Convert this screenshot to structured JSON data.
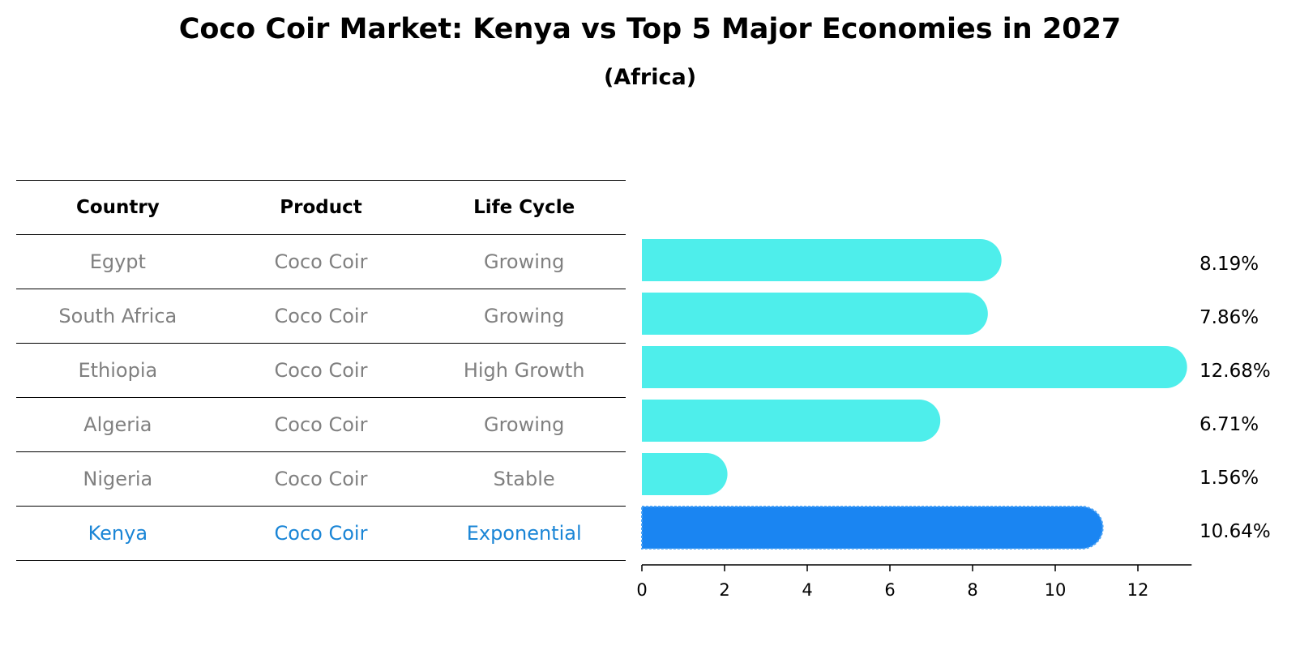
{
  "title": "Coco Coir Market: Kenya vs Top 5 Major Economies in 2027",
  "subtitle": "(Africa)",
  "table": {
    "headers": [
      "Country",
      "Product",
      "Life Cycle"
    ],
    "rows": [
      {
        "country": "Egypt",
        "product": "Coco Coir",
        "life_cycle": "Growing"
      },
      {
        "country": "South Africa",
        "product": "Coco Coir",
        "life_cycle": "Growing"
      },
      {
        "country": "Ethiopia",
        "product": "Coco Coir",
        "life_cycle": "High Growth"
      },
      {
        "country": "Algeria",
        "product": "Coco Coir",
        "life_cycle": "Growing"
      },
      {
        "country": "Nigeria",
        "product": "Coco Coir",
        "life_cycle": "Stable"
      },
      {
        "country": "Kenya",
        "product": "Coco Coir",
        "life_cycle": "Exponential"
      }
    ]
  },
  "colors": {
    "bar": "#4eeeeb",
    "highlight_bar": "#1a85f2",
    "highlight_text": "#1a85d6",
    "muted_text": "#808080"
  },
  "chart_data": {
    "type": "bar",
    "orientation": "horizontal",
    "categories": [
      "Egypt",
      "South Africa",
      "Ethiopia",
      "Algeria",
      "Nigeria",
      "Kenya"
    ],
    "values": [
      8.19,
      7.86,
      12.68,
      6.71,
      1.56,
      10.64
    ],
    "value_labels": [
      "8.19%",
      "7.86%",
      "12.68%",
      "6.71%",
      "1.56%",
      "10.64%"
    ],
    "highlight": "Kenya",
    "xlim": [
      0,
      13.3
    ],
    "xticks": [
      0,
      2,
      4,
      6,
      8,
      10,
      12
    ],
    "grid": false
  }
}
